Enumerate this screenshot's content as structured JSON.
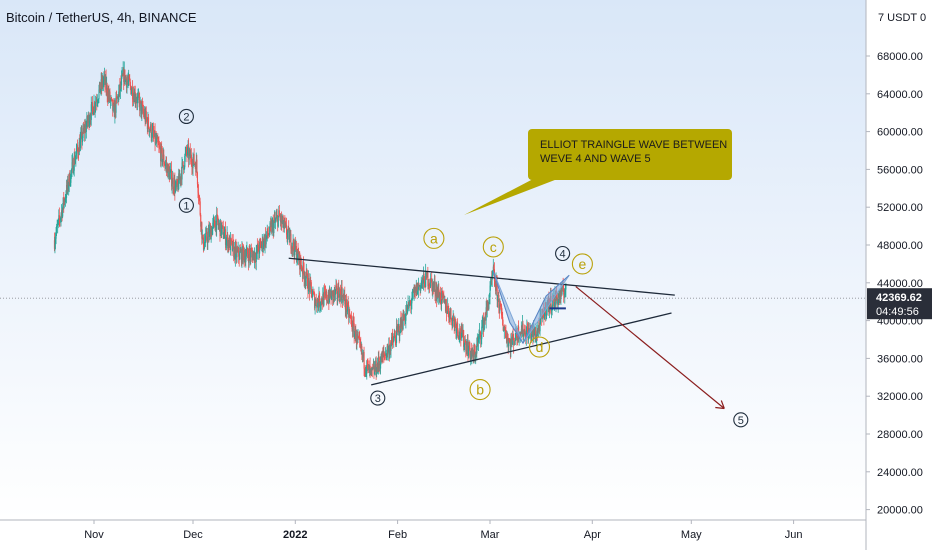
{
  "header": {
    "symbol_title": "Bitcoin / TetherUS, 4h, BINANCE"
  },
  "price_axis": {
    "unit_label": "7 USDT 0",
    "ticks": [
      "68000.00",
      "64000.00",
      "60000.00",
      "56000.00",
      "52000.00",
      "48000.00",
      "44000.00",
      "40000.00",
      "36000.00",
      "32000.00",
      "28000.00",
      "24000.00",
      "20000.00"
    ],
    "tick_values": [
      68000,
      64000,
      60000,
      56000,
      52000,
      48000,
      44000,
      40000,
      36000,
      32000,
      28000,
      24000,
      20000
    ],
    "last_price": "42369.62",
    "countdown": "04:49:56",
    "last_price_value": 42369.62
  },
  "time_axis": {
    "labels": [
      "Nov",
      "Dec",
      "2022",
      "Feb",
      "Mar",
      "Apr",
      "May",
      "Jun"
    ],
    "label_dates": [
      "2021-11-01",
      "2021-12-01",
      "2022-01-01",
      "2022-02-01",
      "2022-03-01",
      "2022-04-01",
      "2022-05-01",
      "2022-06-01"
    ]
  },
  "annotation": {
    "callout_text": "ELLIOT TRAINGLE WAVE BETWEEN WEVE 4 AND WAVE 5"
  },
  "wave_labels": [
    {
      "text": "1",
      "kind": "impulse"
    },
    {
      "text": "2",
      "kind": "impulse"
    },
    {
      "text": "3",
      "kind": "impulse"
    },
    {
      "text": "4",
      "kind": "impulse"
    },
    {
      "text": "5",
      "kind": "impulse"
    },
    {
      "text": "a",
      "kind": "corrective"
    },
    {
      "text": "b",
      "kind": "corrective"
    },
    {
      "text": "c",
      "kind": "corrective"
    },
    {
      "text": "d",
      "kind": "corrective"
    },
    {
      "text": "e",
      "kind": "corrective"
    }
  ],
  "colors": {
    "up_candle": "#26a69a",
    "down_candle": "#ef5350",
    "trendline": "#1e2a3a",
    "projection": "#8b1e1e",
    "callout_bg": "#b5a800",
    "harmonic_fill": "#7fa7d8",
    "impulse_label": "#1f2d3d",
    "corrective_label": "#b9a10a",
    "last_price_bg": "#2a2e39"
  },
  "chart_data": {
    "type": "candlestick",
    "title": "Bitcoin / TetherUS, 4h, BINANCE",
    "xlabel": "",
    "ylabel": "",
    "ylim": [
      18000,
      76000
    ],
    "key_points": [
      {
        "date": "2021-10-20",
        "price": 48500
      },
      {
        "date": "2021-10-26",
        "price": 57000
      },
      {
        "date": "2021-10-31",
        "price": 62000
      },
      {
        "date": "2021-11-04",
        "price": 65500
      },
      {
        "date": "2021-11-07",
        "price": 62000
      },
      {
        "date": "2021-11-10",
        "price": 66000
      },
      {
        "date": "2021-11-14",
        "price": 63500
      },
      {
        "date": "2021-11-19",
        "price": 59500
      },
      {
        "date": "2021-11-26",
        "price": 53800
      },
      {
        "date": "2021-11-29",
        "price": 57800
      },
      {
        "date": "2021-12-02",
        "price": 56500
      },
      {
        "date": "2021-12-04",
        "price": 48000
      },
      {
        "date": "2021-12-08",
        "price": 50500
      },
      {
        "date": "2021-12-14",
        "price": 47000
      },
      {
        "date": "2021-12-20",
        "price": 47000
      },
      {
        "date": "2021-12-27",
        "price": 51000
      },
      {
        "date": "2022-01-01",
        "price": 47500
      },
      {
        "date": "2022-01-07",
        "price": 42000
      },
      {
        "date": "2022-01-15",
        "price": 43000
      },
      {
        "date": "2022-01-22",
        "price": 35500
      },
      {
        "date": "2022-01-24",
        "price": 34200
      },
      {
        "date": "2022-01-31",
        "price": 38000
      },
      {
        "date": "2022-02-07",
        "price": 43500
      },
      {
        "date": "2022-02-10",
        "price": 44500
      },
      {
        "date": "2022-02-14",
        "price": 42500
      },
      {
        "date": "2022-02-18",
        "price": 40000
      },
      {
        "date": "2022-02-24",
        "price": 36000
      },
      {
        "date": "2022-02-28",
        "price": 41000
      },
      {
        "date": "2022-03-02",
        "price": 45000
      },
      {
        "date": "2022-03-05",
        "price": 39500
      },
      {
        "date": "2022-03-07",
        "price": 37500
      },
      {
        "date": "2022-03-10",
        "price": 39000
      },
      {
        "date": "2022-03-15",
        "price": 38500
      },
      {
        "date": "2022-03-18",
        "price": 41500
      },
      {
        "date": "2022-03-22",
        "price": 42500
      },
      {
        "date": "2022-03-24",
        "price": 43500
      }
    ],
    "trendlines": [
      {
        "name": "upper",
        "from": {
          "date": "2021-12-30",
          "price": 46600
        },
        "to": {
          "date": "2022-04-26",
          "price": 42700
        }
      },
      {
        "name": "lower",
        "from": {
          "date": "2022-01-24",
          "price": 33200
        },
        "to": {
          "date": "2022-04-25",
          "price": 40800
        }
      },
      {
        "name": "projection",
        "from": {
          "date": "2022-03-27",
          "price": 43600
        },
        "to": {
          "date": "2022-05-11",
          "price": 30700
        }
      }
    ],
    "wave_points": [
      {
        "label": "1",
        "date": "2021-11-29",
        "price": 52200
      },
      {
        "label": "2",
        "date": "2021-11-29",
        "price": 61600
      },
      {
        "label": "3",
        "date": "2022-01-26",
        "price": 31800
      },
      {
        "label": "a",
        "date": "2022-02-12",
        "price": 48700
      },
      {
        "label": "b",
        "date": "2022-02-26",
        "price": 32700
      },
      {
        "label": "c",
        "date": "2022-03-02",
        "price": 47800
      },
      {
        "label": "d",
        "date": "2022-03-16",
        "price": 37200
      },
      {
        "label": "4",
        "date": "2022-03-23",
        "price": 47100
      },
      {
        "label": "e",
        "date": "2022-03-29",
        "price": 46000
      },
      {
        "label": "5",
        "date": "2022-05-16",
        "price": 29500
      }
    ]
  }
}
